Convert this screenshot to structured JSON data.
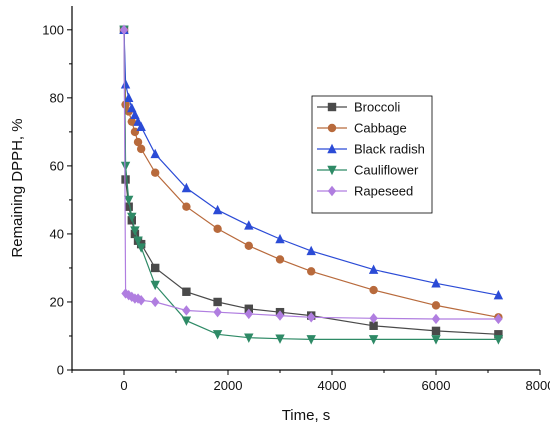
{
  "chart_data": {
    "type": "line",
    "title": "",
    "xlabel": "Time, s",
    "ylabel": "Remaining DPPH, %",
    "xlim": [
      -1000,
      8000
    ],
    "ylim": [
      0,
      107
    ],
    "xticks": [
      0,
      2000,
      4000,
      6000,
      8000
    ],
    "yticks": [
      0,
      20,
      40,
      60,
      80,
      100
    ],
    "grid": false,
    "legend_position": "top-right",
    "series": [
      {
        "name": "Broccoli",
        "color": "#4a4a4a",
        "marker": "square",
        "x": [
          0,
          30,
          90,
          150,
          210,
          270,
          330,
          600,
          1200,
          1800,
          2400,
          3000,
          3600,
          4800,
          6000,
          7200
        ],
        "y": [
          100,
          56,
          48,
          44,
          40,
          38,
          37,
          30,
          23,
          20,
          18,
          17,
          16,
          13,
          11.5,
          10.5
        ]
      },
      {
        "name": "Cabbage",
        "color": "#b86a3c",
        "marker": "circle",
        "x": [
          0,
          30,
          90,
          150,
          210,
          270,
          330,
          600,
          1200,
          1800,
          2400,
          3000,
          3600,
          4800,
          6000,
          7200
        ],
        "y": [
          100,
          78,
          76,
          73,
          70,
          67,
          65,
          58,
          48,
          41.5,
          36.5,
          32.5,
          29,
          23.5,
          19,
          15.5
        ]
      },
      {
        "name": "Black radish",
        "color": "#2b4bd6",
        "marker": "triangle-up",
        "x": [
          0,
          30,
          90,
          150,
          210,
          270,
          330,
          600,
          1200,
          1800,
          2400,
          3000,
          3600,
          4800,
          6000,
          7200
        ],
        "y": [
          100,
          84,
          80,
          77,
          75,
          73,
          71.5,
          63.5,
          53.5,
          47,
          42.5,
          38.5,
          35,
          29.5,
          25.5,
          22
        ]
      },
      {
        "name": "Cauliflower",
        "color": "#2e8a66",
        "marker": "triangle-down",
        "x": [
          0,
          30,
          90,
          150,
          210,
          270,
          330,
          600,
          1200,
          1800,
          2400,
          3000,
          3600,
          4800,
          6000,
          7200
        ],
        "y": [
          100,
          60,
          50,
          45,
          41,
          38,
          36,
          25,
          14.5,
          10.5,
          9.5,
          9.2,
          9,
          9,
          9,
          9
        ]
      },
      {
        "name": "Rapeseed",
        "color": "#b07ee0",
        "marker": "diamond",
        "x": [
          0,
          30,
          90,
          150,
          210,
          270,
          330,
          600,
          1200,
          1800,
          2400,
          3000,
          3600,
          4800,
          6000,
          7200
        ],
        "y": [
          100,
          22.5,
          22,
          21.5,
          21,
          21,
          20.5,
          20,
          17.5,
          17,
          16.5,
          16,
          15.5,
          15.2,
          15,
          15
        ]
      }
    ]
  }
}
